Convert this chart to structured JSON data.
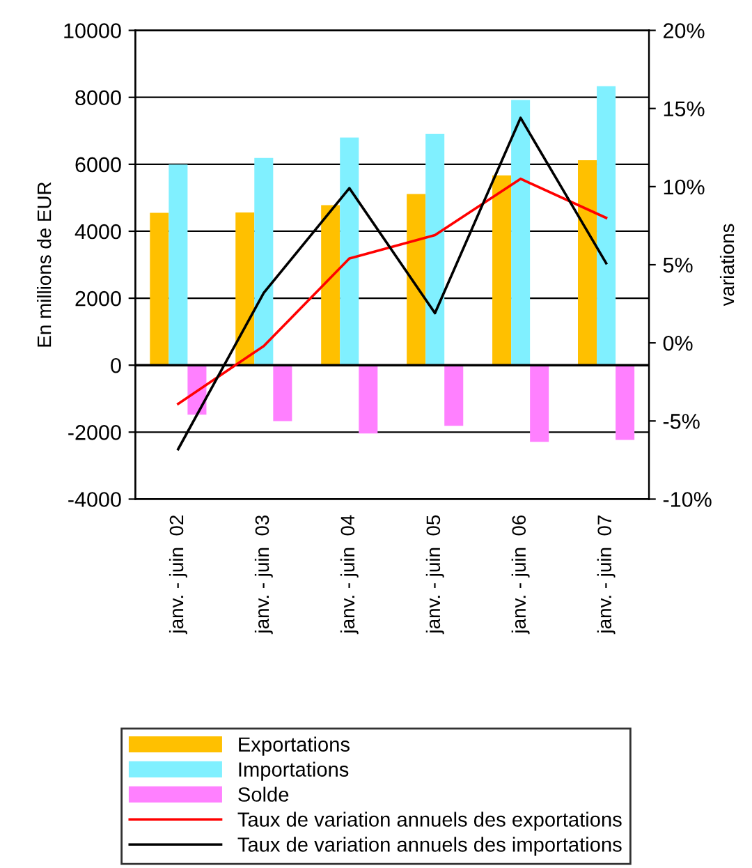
{
  "chart_data": {
    "type": "bar",
    "ylabel": "En millions de EUR",
    "y2label": "variations",
    "categories": [
      "janv. - juin  02",
      "janv. - juin  03",
      "janv. - juin  04",
      "janv. - juin  05",
      "janv. - juin  06",
      "janv. - juin  07"
    ],
    "series": [
      {
        "name": "Exportations",
        "color": "#ffc000",
        "values": [
          4550,
          4560,
          4780,
          5110,
          5670,
          6120
        ]
      },
      {
        "name": "Importations",
        "color": "#80f0ff",
        "values": [
          5990,
          6190,
          6800,
          6910,
          7920,
          8330
        ]
      },
      {
        "name": "Solde",
        "color": "#ff80ff",
        "values": [
          -1480,
          -1670,
          -2040,
          -1810,
          -2290,
          -2230
        ]
      },
      {
        "name": "Taux de variation annuels des exportations",
        "type": "line",
        "axis": "y2",
        "color": "#ff0000",
        "values": [
          -3.9,
          -0.2,
          5.4,
          6.9,
          10.5,
          8.0
        ]
      },
      {
        "name": "Taux de variation annuels des importations",
        "type": "line",
        "axis": "y2",
        "color": "#000000",
        "values": [
          -6.8,
          3.2,
          9.9,
          1.9,
          14.4,
          5.1
        ]
      }
    ],
    "ylim": [
      -4000,
      10000
    ],
    "yticks": [
      -4000,
      -2000,
      0,
      2000,
      4000,
      6000,
      8000,
      10000
    ],
    "y2lim": [
      -10,
      20
    ],
    "y2ticks": [
      {
        "value": -10,
        "label": "-10%"
      },
      {
        "value": -5,
        "label": "-5%"
      },
      {
        "value": 0,
        "label": "0%"
      },
      {
        "value": 5,
        "label": "5%"
      },
      {
        "value": 10,
        "label": "10%"
      },
      {
        "value": 15,
        "label": "15%"
      },
      {
        "value": 20,
        "label": "20%"
      }
    ],
    "grid": "y",
    "legend": "bottom",
    "marker": "none",
    "line_style": "solid"
  }
}
